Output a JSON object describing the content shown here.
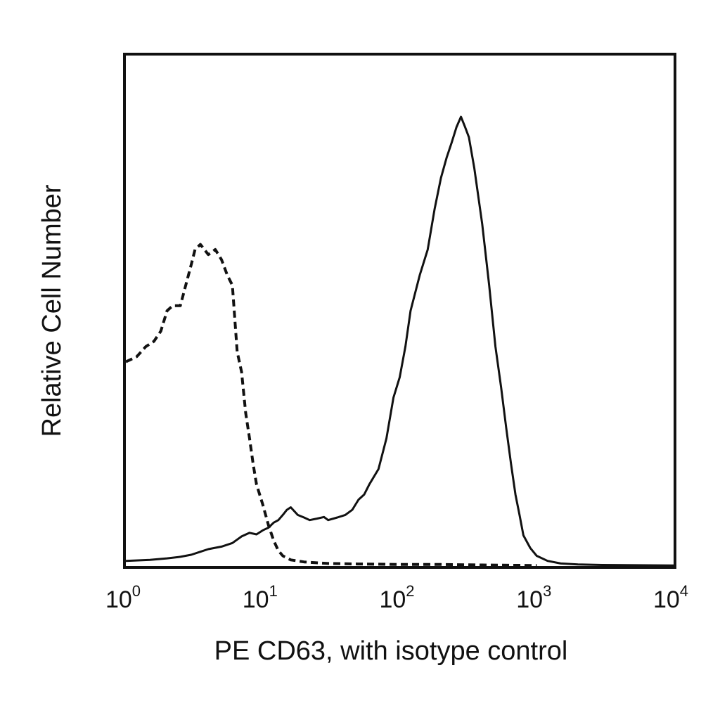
{
  "chart_data": {
    "type": "line",
    "title": "",
    "xlabel": "PE CD63, with isotype control",
    "ylabel": "Relative Cell Number",
    "x_scale": "log",
    "xlim": [
      1,
      10000
    ],
    "ylim": [
      0,
      100
    ],
    "grid": false,
    "x_ticks": [
      {
        "value": 1,
        "base": "10",
        "exp": "0"
      },
      {
        "value": 10,
        "base": "10",
        "exp": "1"
      },
      {
        "value": 100,
        "base": "10",
        "exp": "2"
      },
      {
        "value": 1000,
        "base": "10",
        "exp": "3"
      },
      {
        "value": 10000,
        "base": "10",
        "exp": "4"
      }
    ],
    "series": [
      {
        "style": "solid",
        "color": "#111111",
        "points": [
          [
            1.0,
            1
          ],
          [
            1.5,
            1.2
          ],
          [
            2.0,
            1.5
          ],
          [
            2.5,
            1.8
          ],
          [
            3.0,
            2.2
          ],
          [
            3.5,
            2.8
          ],
          [
            4.0,
            3.3
          ],
          [
            5.0,
            3.8
          ],
          [
            6.0,
            4.5
          ],
          [
            7.0,
            5.8
          ],
          [
            8.0,
            6.5
          ],
          [
            9.0,
            6.2
          ],
          [
            10.0,
            7
          ],
          [
            11.0,
            7.5
          ],
          [
            12.0,
            8.5
          ],
          [
            13.0,
            9
          ],
          [
            14.0,
            10
          ],
          [
            15.0,
            11
          ],
          [
            16.0,
            11.5
          ],
          [
            18.0,
            10
          ],
          [
            20.0,
            9.5
          ],
          [
            22.0,
            9
          ],
          [
            25.0,
            9.3
          ],
          [
            28.0,
            9.6
          ],
          [
            30.0,
            9
          ],
          [
            35.0,
            9.5
          ],
          [
            40.0,
            10
          ],
          [
            45.0,
            11
          ],
          [
            50.0,
            13
          ],
          [
            55.0,
            14
          ],
          [
            60.0,
            16
          ],
          [
            70.0,
            19
          ],
          [
            80.0,
            25
          ],
          [
            90.0,
            33
          ],
          [
            100.0,
            37
          ],
          [
            110.0,
            43
          ],
          [
            120.0,
            50
          ],
          [
            140.0,
            57
          ],
          [
            160.0,
            62
          ],
          [
            180.0,
            70
          ],
          [
            200.0,
            76
          ],
          [
            220.0,
            80
          ],
          [
            240.0,
            83
          ],
          [
            260.0,
            86
          ],
          [
            280.0,
            88
          ],
          [
            300.0,
            86
          ],
          [
            320.0,
            84
          ],
          [
            350.0,
            78
          ],
          [
            400.0,
            67
          ],
          [
            450.0,
            55
          ],
          [
            500.0,
            43
          ],
          [
            550.0,
            35
          ],
          [
            600.0,
            27
          ],
          [
            650.0,
            20
          ],
          [
            700.0,
            14
          ],
          [
            750.0,
            10
          ],
          [
            800.0,
            6
          ],
          [
            900.0,
            3.5
          ],
          [
            1000.0,
            2
          ],
          [
            1200.0,
            1
          ],
          [
            1500.0,
            0.5
          ],
          [
            2000.0,
            0.3
          ],
          [
            3000.0,
            0.2
          ],
          [
            10000.0,
            0.1
          ]
        ]
      },
      {
        "style": "dashed",
        "color": "#111111",
        "points": [
          [
            1.0,
            40
          ],
          [
            1.2,
            41
          ],
          [
            1.4,
            43
          ],
          [
            1.6,
            44
          ],
          [
            1.8,
            46
          ],
          [
            2.0,
            50
          ],
          [
            2.2,
            51
          ],
          [
            2.5,
            51
          ],
          [
            2.8,
            56
          ],
          [
            3.0,
            59
          ],
          [
            3.2,
            62
          ],
          [
            3.5,
            63
          ],
          [
            4.0,
            61
          ],
          [
            4.5,
            62
          ],
          [
            5.0,
            60
          ],
          [
            5.5,
            57
          ],
          [
            6.0,
            55
          ],
          [
            6.5,
            42
          ],
          [
            7.0,
            38
          ],
          [
            7.5,
            30
          ],
          [
            8.0,
            25
          ],
          [
            8.5,
            20
          ],
          [
            9.0,
            16
          ],
          [
            10.0,
            12
          ],
          [
            11.0,
            8
          ],
          [
            12.0,
            5
          ],
          [
            13.0,
            3
          ],
          [
            14.0,
            2
          ],
          [
            16.0,
            1.2
          ],
          [
            20.0,
            0.8
          ],
          [
            30.0,
            0.5
          ],
          [
            50.0,
            0.4
          ],
          [
            100.0,
            0.3
          ],
          [
            200.0,
            0.3
          ],
          [
            400.0,
            0.2
          ],
          [
            1000.0,
            0.1
          ]
        ]
      }
    ]
  }
}
